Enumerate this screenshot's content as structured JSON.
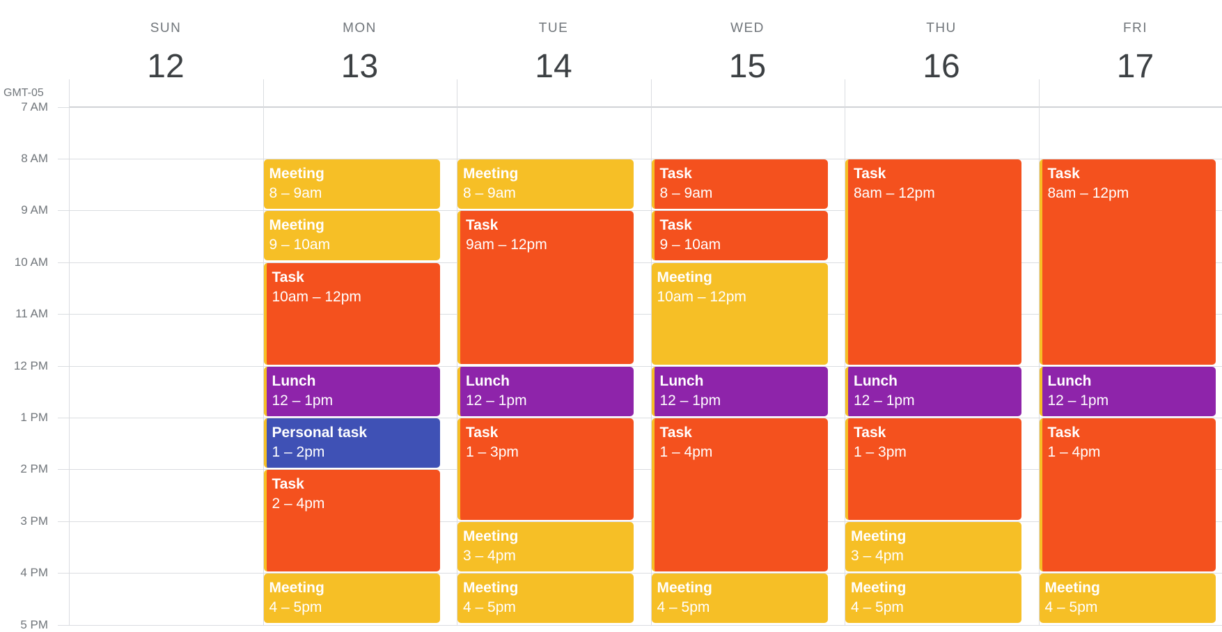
{
  "timezone": "GMT-05",
  "colors": {
    "task": "#f4511e",
    "meeting": "#f6bf26",
    "lunch": "#8e24aa",
    "personal": "#3f51b5"
  },
  "days": [
    {
      "dow": "SUN",
      "date": "12"
    },
    {
      "dow": "MON",
      "date": "13"
    },
    {
      "dow": "TUE",
      "date": "14"
    },
    {
      "dow": "WED",
      "date": "15"
    },
    {
      "dow": "THU",
      "date": "16"
    },
    {
      "dow": "FRI",
      "date": "17"
    }
  ],
  "hours": [
    {
      "label": "7 AM",
      "hour": 7
    },
    {
      "label": "8 AM",
      "hour": 8
    },
    {
      "label": "9 AM",
      "hour": 9
    },
    {
      "label": "10 AM",
      "hour": 10
    },
    {
      "label": "11 AM",
      "hour": 11
    },
    {
      "label": "12 PM",
      "hour": 12
    },
    {
      "label": "1 PM",
      "hour": 13
    },
    {
      "label": "2 PM",
      "hour": 14
    },
    {
      "label": "3 PM",
      "hour": 15
    },
    {
      "label": "4 PM",
      "hour": 16
    },
    {
      "label": "5 PM",
      "hour": 17
    }
  ],
  "events": [
    {
      "day": 1,
      "title": "Meeting",
      "range": "8 – 9am",
      "start": 8,
      "end": 9,
      "kind": "meeting"
    },
    {
      "day": 1,
      "title": "Meeting",
      "range": "9 – 10am",
      "start": 9,
      "end": 10,
      "kind": "meeting"
    },
    {
      "day": 1,
      "title": "Task",
      "range": "10am – 12pm",
      "start": 10,
      "end": 12,
      "kind": "task"
    },
    {
      "day": 1,
      "title": "Lunch",
      "range": "12 – 1pm",
      "start": 12,
      "end": 13,
      "kind": "lunch"
    },
    {
      "day": 1,
      "title": "Personal task",
      "range": "1 – 2pm",
      "start": 13,
      "end": 14,
      "kind": "personal"
    },
    {
      "day": 1,
      "title": "Task",
      "range": "2 – 4pm",
      "start": 14,
      "end": 16,
      "kind": "task"
    },
    {
      "day": 1,
      "title": "Meeting",
      "range": "4 – 5pm",
      "start": 16,
      "end": 17,
      "kind": "meeting"
    },
    {
      "day": 2,
      "title": "Meeting",
      "range": "8 – 9am",
      "start": 8,
      "end": 9,
      "kind": "meeting"
    },
    {
      "day": 2,
      "title": "Task",
      "range": "9am – 12pm",
      "start": 9,
      "end": 12,
      "kind": "task"
    },
    {
      "day": 2,
      "title": "Lunch",
      "range": "12 – 1pm",
      "start": 12,
      "end": 13,
      "kind": "lunch"
    },
    {
      "day": 2,
      "title": "Task",
      "range": "1 – 3pm",
      "start": 13,
      "end": 15,
      "kind": "task"
    },
    {
      "day": 2,
      "title": "Meeting",
      "range": "3 – 4pm",
      "start": 15,
      "end": 16,
      "kind": "meeting"
    },
    {
      "day": 2,
      "title": "Meeting",
      "range": "4 – 5pm",
      "start": 16,
      "end": 17,
      "kind": "meeting"
    },
    {
      "day": 3,
      "title": "Task",
      "range": "8 – 9am",
      "start": 8,
      "end": 9,
      "kind": "task"
    },
    {
      "day": 3,
      "title": "Task",
      "range": "9 – 10am",
      "start": 9,
      "end": 10,
      "kind": "task"
    },
    {
      "day": 3,
      "title": "Meeting",
      "range": "10am – 12pm",
      "start": 10,
      "end": 12,
      "kind": "meeting"
    },
    {
      "day": 3,
      "title": "Lunch",
      "range": "12 – 1pm",
      "start": 12,
      "end": 13,
      "kind": "lunch"
    },
    {
      "day": 3,
      "title": "Task",
      "range": "1 – 4pm",
      "start": 13,
      "end": 16,
      "kind": "task"
    },
    {
      "day": 3,
      "title": "Meeting",
      "range": "4 – 5pm",
      "start": 16,
      "end": 17,
      "kind": "meeting"
    },
    {
      "day": 4,
      "title": "Task",
      "range": "8am – 12pm",
      "start": 8,
      "end": 12,
      "kind": "task"
    },
    {
      "day": 4,
      "title": "Lunch",
      "range": "12 – 1pm",
      "start": 12,
      "end": 13,
      "kind": "lunch"
    },
    {
      "day": 4,
      "title": "Task",
      "range": "1 – 3pm",
      "start": 13,
      "end": 15,
      "kind": "task"
    },
    {
      "day": 4,
      "title": "Meeting",
      "range": "3 – 4pm",
      "start": 15,
      "end": 16,
      "kind": "meeting"
    },
    {
      "day": 4,
      "title": "Meeting",
      "range": "4 – 5pm",
      "start": 16,
      "end": 17,
      "kind": "meeting"
    },
    {
      "day": 5,
      "title": "Task",
      "range": "8am – 12pm",
      "start": 8,
      "end": 12,
      "kind": "task"
    },
    {
      "day": 5,
      "title": "Lunch",
      "range": "12 – 1pm",
      "start": 12,
      "end": 13,
      "kind": "lunch"
    },
    {
      "day": 5,
      "title": "Task",
      "range": "1 – 4pm",
      "start": 13,
      "end": 16,
      "kind": "task"
    },
    {
      "day": 5,
      "title": "Meeting",
      "range": "4 – 5pm",
      "start": 16,
      "end": 17,
      "kind": "meeting"
    }
  ]
}
